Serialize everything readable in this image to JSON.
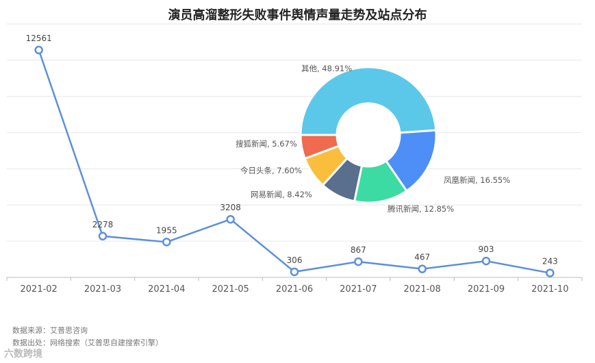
{
  "title": "演员高溜整形失败事件舆情声量走势及站点分布",
  "source": {
    "line1": "数据来源：艾普思咨询",
    "line2": "数据出处：网络搜索（艾普思自建搜索引擎）"
  },
  "watermark": "六数跨境",
  "chart_data": [
    {
      "type": "line",
      "categories": [
        "2021-02",
        "2021-03",
        "2021-04",
        "2021-05",
        "2021-06",
        "2021-07",
        "2021-08",
        "2021-09",
        "2021-10"
      ],
      "values": [
        12561,
        2278,
        1955,
        3208,
        306,
        867,
        467,
        903,
        243
      ],
      "ylim": [
        0,
        14000
      ],
      "grid": true,
      "color": "#5b8fde"
    },
    {
      "type": "pie",
      "donut": true,
      "slices": [
        {
          "label": "其他, 48.91%",
          "value": 48.91,
          "color": "#5bc8ea"
        },
        {
          "label": "凤凰新闻, 16.55%",
          "value": 16.55,
          "color": "#4d8ef7"
        },
        {
          "label": "腾讯新闻, 12.85%",
          "value": 12.85,
          "color": "#3ddba4"
        },
        {
          "label": "网易新闻, 8.42%",
          "value": 8.42,
          "color": "#5a6e8e"
        },
        {
          "label": "今日头条, 7.60%",
          "value": 7.6,
          "color": "#fbbe3c"
        },
        {
          "label": "搜狐新闻, 5.67%",
          "value": 5.67,
          "color": "#ef6a4e"
        }
      ]
    }
  ]
}
